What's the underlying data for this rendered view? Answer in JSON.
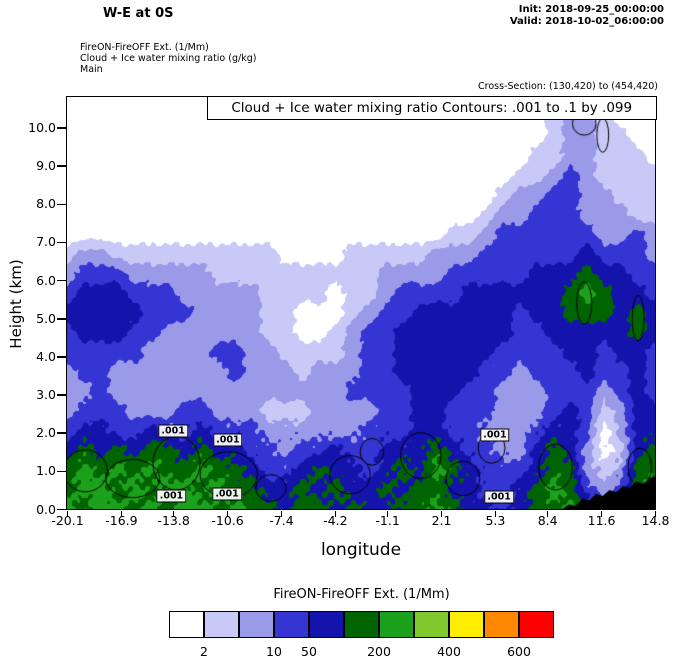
{
  "header": {
    "title": "W-E at 0S",
    "init_label": "Init: 2018-09-25_00:00:00",
    "valid_label": "Valid: 2018-10-02_06:00:00",
    "field_lines": [
      "FireON-FireOFF Ext. (1/Mm)",
      "Cloud + Ice water mixing ratio (g/kg)",
      "Main"
    ],
    "cross_section": "Cross-Section: (130,420) to (454,420)"
  },
  "plot": {
    "inner_title": "Cloud + Ice water mixing ratio Contours: .001 to .1 by .099",
    "xlabel": "longitude",
    "ylabel": "Height (km)"
  },
  "colorbar": {
    "title": "FireON-FireOFF Ext. (1/Mm)",
    "colors": [
      "#ffffff",
      "#c9c9f7",
      "#9a9ae8",
      "#3535d4",
      "#1414ad",
      "#006400",
      "#1ca11c",
      "#7fc92e",
      "#ffee00",
      "#ff8800",
      "#ff0000"
    ],
    "boundaries": [
      2,
      5,
      10,
      50,
      100,
      200,
      300,
      400,
      500,
      600
    ],
    "tick_values": [
      "2",
      "10",
      "50",
      "200",
      "400",
      "600"
    ],
    "tick_edges": [
      1,
      3,
      4,
      6,
      8,
      10
    ]
  },
  "chart_data": {
    "type": "heatmap",
    "subtype": "filled-contour-cross-section",
    "title": "Cloud + Ice water mixing ratio Contours: .001 to .1 by .099",
    "xlabel": "longitude",
    "ylabel": "Height (km)",
    "x_range": [
      -20.1,
      14.8
    ],
    "y_range": [
      0,
      10.8
    ],
    "x_ticks": [
      -20.1,
      -16.9,
      -13.8,
      -10.6,
      -7.4,
      -4.2,
      -1.1,
      2.1,
      5.3,
      8.4,
      11.6,
      14.8
    ],
    "y_ticks": [
      0,
      1,
      2,
      3,
      4,
      5,
      6,
      7,
      8,
      9,
      10
    ],
    "legend_units": "FireON-FireOFF Ext. (1/Mm)",
    "level_colors": [
      "#ffffff",
      "#c9c9f7",
      "#9a9ae8",
      "#3535d4",
      "#1414ad",
      "#006400",
      "#1ca11c"
    ],
    "level_meaning": [
      "<2",
      "2-5",
      "5-10",
      "10-50",
      "50-100",
      "100-200",
      "200-300"
    ],
    "grid": [
      [
        0,
        0,
        0,
        0,
        0,
        0,
        0,
        0,
        0,
        0,
        0,
        0,
        0,
        0,
        0,
        0,
        0,
        0,
        0,
        0,
        0,
        0,
        0,
        0,
        0,
        0,
        0,
        0,
        0,
        0,
        1,
        1,
        0,
        0,
        0,
        0
      ],
      [
        0,
        0,
        0,
        0,
        0,
        0,
        0,
        0,
        0,
        0,
        0,
        0,
        0,
        0,
        0,
        0,
        0,
        0,
        0,
        0,
        0,
        0,
        0,
        0,
        0,
        0,
        0,
        0,
        0,
        1,
        2,
        2,
        1,
        0,
        0,
        0
      ],
      [
        0,
        0,
        0,
        0,
        0,
        0,
        0,
        0,
        0,
        0,
        0,
        0,
        0,
        0,
        0,
        0,
        0,
        0,
        0,
        0,
        0,
        0,
        0,
        0,
        0,
        0,
        0,
        0,
        0,
        1,
        2,
        2,
        1,
        1,
        0,
        0
      ],
      [
        0,
        0,
        0,
        0,
        0,
        0,
        0,
        0,
        0,
        0,
        0,
        0,
        0,
        0,
        0,
        0,
        0,
        0,
        0,
        0,
        0,
        0,
        0,
        0,
        0,
        0,
        0,
        0,
        1,
        1,
        2,
        2,
        1,
        1,
        1,
        0
      ],
      [
        0,
        0,
        0,
        0,
        0,
        0,
        0,
        0,
        0,
        0,
        0,
        0,
        0,
        0,
        0,
        0,
        0,
        0,
        0,
        0,
        0,
        0,
        0,
        0,
        0,
        0,
        0,
        1,
        1,
        2,
        3,
        2,
        1,
        1,
        1,
        1
      ],
      [
        0,
        0,
        0,
        0,
        0,
        0,
        0,
        0,
        0,
        0,
        0,
        0,
        0,
        0,
        0,
        0,
        0,
        0,
        0,
        0,
        0,
        0,
        0,
        0,
        0,
        0,
        1,
        2,
        2,
        3,
        3,
        2,
        2,
        1,
        1,
        1
      ],
      [
        0,
        0,
        0,
        0,
        0,
        0,
        0,
        0,
        0,
        0,
        0,
        0,
        0,
        0,
        0,
        0,
        0,
        0,
        0,
        0,
        0,
        0,
        0,
        0,
        0,
        1,
        2,
        2,
        3,
        3,
        3,
        2,
        2,
        2,
        1,
        1
      ],
      [
        0,
        0,
        0,
        0,
        0,
        0,
        0,
        0,
        0,
        0,
        0,
        0,
        0,
        0,
        0,
        0,
        0,
        0,
        0,
        0,
        0,
        0,
        0,
        1,
        1,
        2,
        3,
        3,
        3,
        3,
        3,
        3,
        2,
        2,
        3,
        2
      ],
      [
        1,
        2,
        2,
        1,
        1,
        1,
        1,
        1,
        1,
        1,
        1,
        1,
        1,
        0,
        0,
        0,
        0,
        1,
        1,
        1,
        1,
        1,
        2,
        2,
        2,
        3,
        3,
        3,
        3,
        3,
        3,
        4,
        3,
        3,
        3,
        2
      ],
      [
        2,
        3,
        3,
        3,
        2,
        2,
        2,
        2,
        2,
        1,
        1,
        1,
        1,
        1,
        1,
        1,
        1,
        1,
        1,
        2,
        2,
        2,
        2,
        3,
        3,
        3,
        3,
        3,
        4,
        4,
        4,
        5,
        4,
        4,
        3,
        3
      ],
      [
        3,
        4,
        4,
        4,
        3,
        3,
        3,
        2,
        2,
        2,
        2,
        2,
        1,
        1,
        1,
        1,
        0,
        1,
        1,
        2,
        3,
        3,
        3,
        3,
        4,
        4,
        4,
        4,
        4,
        4,
        5,
        6,
        5,
        4,
        4,
        3
      ],
      [
        4,
        4,
        4,
        4,
        4,
        3,
        3,
        3,
        2,
        2,
        2,
        2,
        1,
        1,
        0,
        0,
        0,
        1,
        2,
        3,
        3,
        4,
        4,
        4,
        4,
        4,
        4,
        3,
        4,
        4,
        5,
        5,
        5,
        4,
        5,
        4
      ],
      [
        3,
        4,
        4,
        4,
        3,
        3,
        2,
        2,
        2,
        2,
        2,
        2,
        1,
        1,
        0,
        0,
        1,
        2,
        3,
        3,
        4,
        4,
        4,
        4,
        4,
        4,
        4,
        3,
        3,
        4,
        4,
        4,
        4,
        4,
        5,
        4
      ],
      [
        3,
        3,
        3,
        3,
        3,
        2,
        2,
        2,
        2,
        3,
        3,
        2,
        2,
        1,
        1,
        1,
        1,
        2,
        3,
        3,
        4,
        4,
        4,
        4,
        4,
        4,
        3,
        3,
        3,
        3,
        4,
        4,
        3,
        4,
        4,
        3
      ],
      [
        2,
        3,
        3,
        2,
        2,
        2,
        2,
        2,
        2,
        2,
        3,
        2,
        2,
        2,
        1,
        2,
        2,
        2,
        3,
        3,
        4,
        4,
        4,
        4,
        4,
        3,
        3,
        2,
        3,
        3,
        3,
        4,
        3,
        3,
        4,
        3
      ],
      [
        2,
        2,
        3,
        2,
        2,
        2,
        2,
        2,
        2,
        2,
        2,
        2,
        2,
        2,
        2,
        2,
        2,
        3,
        3,
        3,
        3,
        4,
        4,
        4,
        3,
        3,
        2,
        2,
        2,
        3,
        3,
        3,
        2,
        3,
        4,
        3
      ],
      [
        2,
        3,
        3,
        3,
        2,
        2,
        2,
        3,
        3,
        2,
        2,
        2,
        1,
        1,
        1,
        2,
        2,
        2,
        2,
        3,
        3,
        4,
        4,
        3,
        3,
        3,
        2,
        2,
        2,
        3,
        4,
        3,
        1,
        2,
        4,
        4
      ],
      [
        3,
        4,
        4,
        3,
        3,
        4,
        3,
        3,
        4,
        3,
        3,
        3,
        2,
        2,
        2,
        2,
        2,
        2,
        3,
        3,
        3,
        4,
        4,
        3,
        3,
        2,
        2,
        2,
        3,
        4,
        4,
        3,
        0,
        2,
        4,
        4
      ],
      [
        4,
        5,
        4,
        5,
        4,
        5,
        5,
        4,
        5,
        4,
        4,
        3,
        3,
        2,
        3,
        3,
        4,
        3,
        3,
        4,
        4,
        4,
        5,
        4,
        3,
        3,
        2,
        2,
        4,
        5,
        4,
        2,
        0,
        1,
        4,
        5
      ],
      [
        5,
        6,
        5,
        6,
        5,
        6,
        5,
        5,
        6,
        5,
        5,
        4,
        3,
        3,
        4,
        5,
        4,
        4,
        3,
        4,
        5,
        4,
        6,
        5,
        4,
        3,
        3,
        3,
        4,
        5,
        5,
        2,
        1,
        2,
        5,
        5
      ],
      [
        5,
        6,
        6,
        5,
        6,
        5,
        6,
        6,
        5,
        6,
        5,
        5,
        4,
        4,
        5,
        4,
        5,
        4,
        4,
        5,
        4,
        5,
        5,
        4,
        4,
        3,
        3,
        4,
        5,
        6,
        5,
        3,
        2,
        3,
        5,
        6
      ],
      [
        6,
        5,
        6,
        6,
        5,
        6,
        5,
        6,
        6,
        5,
        6,
        5,
        5,
        4,
        5,
        5,
        4,
        5,
        4,
        4,
        5,
        5,
        6,
        5,
        4,
        4,
        3,
        4,
        5,
        5,
        6,
        4,
        3,
        4,
        6,
        6
      ]
    ],
    "contour_label": ".001",
    "contour_ellipses": [
      [
        -19.0,
        1.0,
        1.3,
        0.55
      ],
      [
        -16.2,
        0.8,
        1.6,
        0.5
      ],
      [
        -13.6,
        1.2,
        1.4,
        0.7
      ],
      [
        -10.5,
        0.9,
        1.7,
        0.6
      ],
      [
        -8.0,
        0.55,
        0.9,
        0.35
      ],
      [
        -3.3,
        0.9,
        1.2,
        0.5
      ],
      [
        -2.0,
        1.5,
        0.7,
        0.35
      ],
      [
        0.9,
        1.4,
        1.2,
        0.6
      ],
      [
        3.4,
        0.8,
        1.0,
        0.45
      ],
      [
        5.1,
        1.6,
        0.8,
        0.4
      ],
      [
        8.9,
        1.1,
        1.0,
        0.6
      ],
      [
        13.9,
        1.1,
        0.7,
        0.5
      ],
      [
        10.6,
        5.4,
        0.45,
        0.55
      ],
      [
        13.8,
        5.0,
        0.35,
        0.6
      ],
      [
        10.6,
        10.1,
        0.7,
        0.3
      ],
      [
        11.7,
        9.8,
        0.35,
        0.45
      ]
    ],
    "contour_boxes": [
      {
        "x": -13.8,
        "y": 2.05,
        "label": ".001"
      },
      {
        "x": -10.55,
        "y": 1.8,
        "label": ".001"
      },
      {
        "x": 5.3,
        "y": 1.95,
        "label": ".001"
      },
      {
        "x": -13.9,
        "y": 0.35,
        "label": ".001"
      },
      {
        "x": -10.6,
        "y": 0.4,
        "label": ".001"
      },
      {
        "x": 5.55,
        "y": 0.32,
        "label": ".001"
      }
    ],
    "terrain": [
      [
        9.3,
        0
      ],
      [
        9.7,
        0.12
      ],
      [
        10.1,
        0.08
      ],
      [
        10.5,
        0.28
      ],
      [
        10.9,
        0.22
      ],
      [
        11.3,
        0.4
      ],
      [
        11.7,
        0.34
      ],
      [
        12.1,
        0.5
      ],
      [
        12.5,
        0.44
      ],
      [
        12.9,
        0.6
      ],
      [
        13.3,
        0.56
      ],
      [
        13.7,
        0.72
      ],
      [
        14.1,
        0.66
      ],
      [
        14.5,
        0.8
      ],
      [
        14.8,
        0.86
      ]
    ]
  }
}
